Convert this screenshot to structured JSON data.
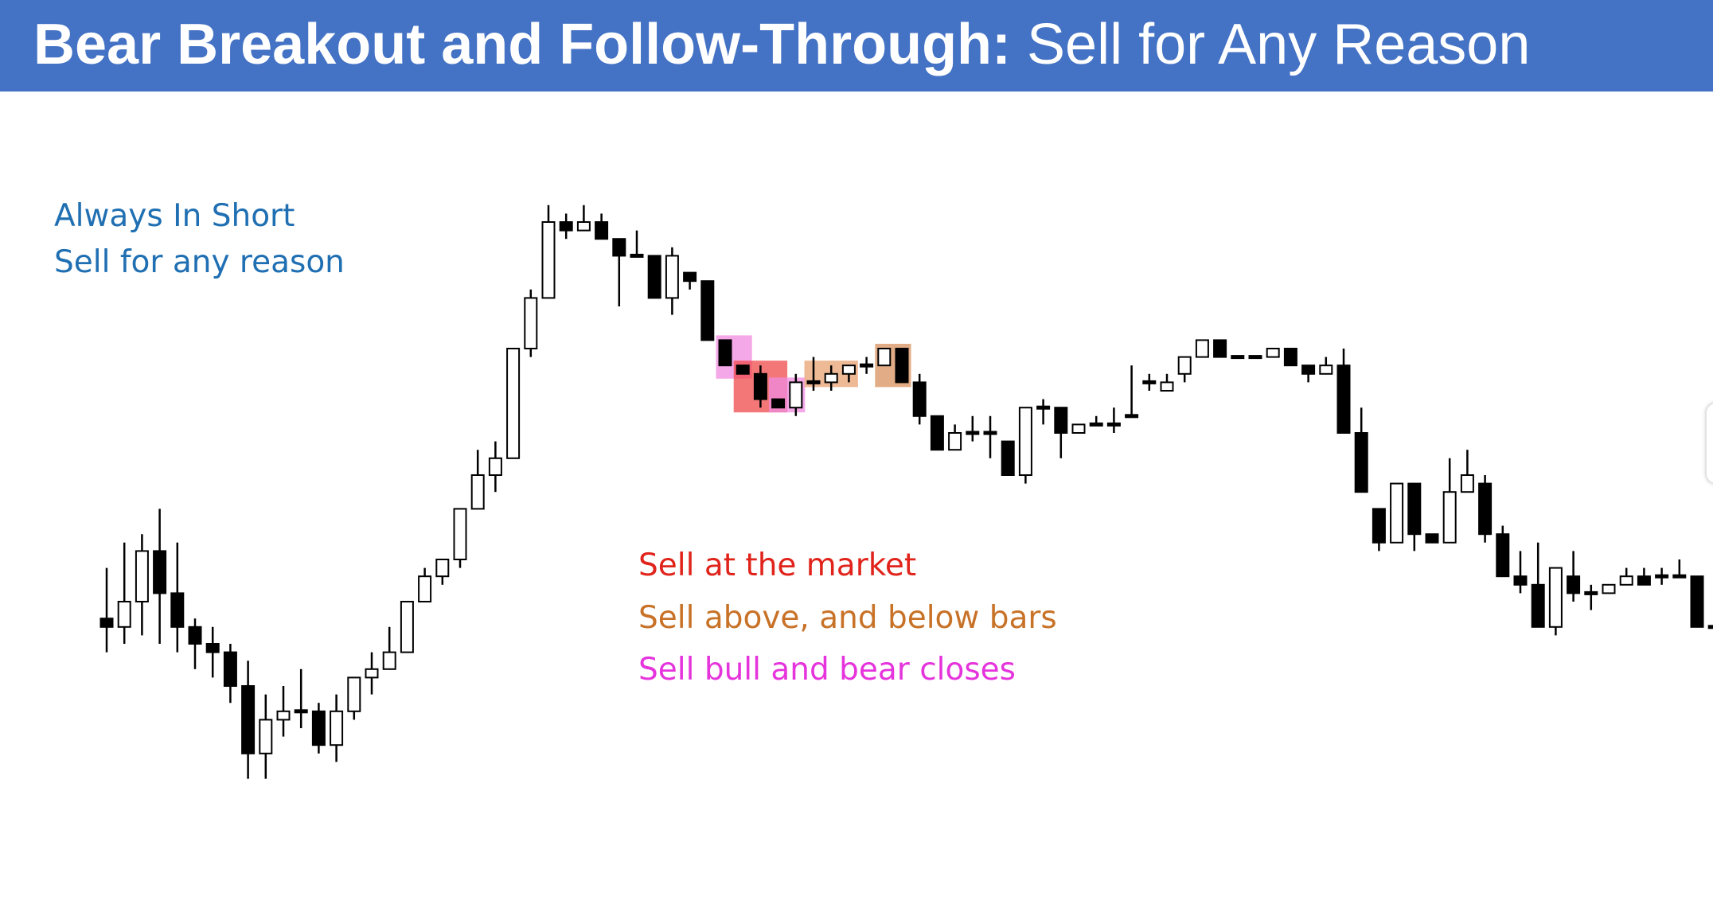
{
  "slide": {
    "title_bold": "Bear Breakout and Follow-Through:",
    "title_rest": "Sell for Any Reason",
    "title_bg": "#4472c4"
  },
  "notes": {
    "always_in": {
      "text": "Always In Short",
      "color": "#1f6fb2"
    },
    "sell_any": {
      "text": "Sell for any reason",
      "color": "#1f6fb2"
    }
  },
  "legend": [
    {
      "text": "Sell at the market",
      "color": "#e0241b"
    },
    {
      "text": "Sell above, and below bars",
      "color": "#c87228"
    },
    {
      "text": "Sell bull and bear closes",
      "color": "#e534dc"
    }
  ],
  "chart_data": {
    "type": "candlestick",
    "title": "",
    "xlabel": "",
    "ylabel": "",
    "ylim": [
      0,
      100
    ],
    "grid": false,
    "colors": {
      "bull": "#ffffff",
      "bear": "#000000",
      "outline": "#000000"
    },
    "bars": [
      [
        38,
        37,
        44,
        34
      ],
      [
        37,
        40,
        47,
        35
      ],
      [
        40,
        46,
        48,
        36
      ],
      [
        46,
        41,
        51,
        35
      ],
      [
        41,
        37,
        47,
        34
      ],
      [
        37,
        35,
        38,
        32
      ],
      [
        35,
        34,
        37,
        31
      ],
      [
        34,
        30,
        35,
        28
      ],
      [
        30,
        22,
        33,
        19
      ],
      [
        22,
        26,
        29,
        19
      ],
      [
        26,
        27,
        30,
        24
      ],
      [
        27,
        27,
        32,
        25
      ],
      [
        27,
        23,
        28,
        22
      ],
      [
        23,
        27,
        29,
        21
      ],
      [
        27,
        31,
        31,
        26
      ],
      [
        31,
        32,
        34,
        29
      ],
      [
        32,
        34,
        37,
        32
      ],
      [
        34,
        40,
        40,
        34
      ],
      [
        40,
        43,
        44,
        40
      ],
      [
        43,
        45,
        45,
        42
      ],
      [
        45,
        51,
        51,
        44
      ],
      [
        51,
        55,
        58,
        51
      ],
      [
        55,
        57,
        59,
        53
      ],
      [
        57,
        70,
        70,
        57
      ],
      [
        70,
        76,
        77,
        69
      ],
      [
        76,
        85,
        87,
        76
      ],
      [
        85,
        84,
        86,
        83
      ],
      [
        84,
        85,
        87,
        84
      ],
      [
        85,
        83,
        86,
        83
      ],
      [
        83,
        81,
        83,
        75
      ],
      [
        81,
        81,
        84,
        81
      ],
      [
        81,
        76,
        81,
        76
      ],
      [
        76,
        81,
        82,
        74
      ],
      [
        79,
        78,
        79,
        77
      ],
      [
        78,
        71,
        78,
        71
      ],
      [
        71,
        68,
        69,
        68
      ],
      [
        68,
        67,
        68,
        67
      ],
      [
        67,
        64,
        68,
        63
      ],
      [
        64,
        63,
        63,
        63
      ],
      [
        63,
        66,
        67,
        62
      ],
      [
        66,
        66,
        69,
        65
      ],
      [
        66,
        67,
        68,
        65
      ],
      [
        67,
        68,
        68,
        66
      ],
      [
        68,
        68,
        69,
        67
      ],
      [
        68,
        70,
        70,
        69
      ],
      [
        70,
        66,
        70,
        66
      ],
      [
        66,
        62,
        67,
        61
      ],
      [
        62,
        58,
        62,
        58
      ],
      [
        58,
        60,
        61,
        58
      ],
      [
        60,
        60,
        62,
        59
      ],
      [
        60,
        60,
        62,
        57
      ],
      [
        59,
        55,
        59,
        55
      ],
      [
        55,
        63,
        63,
        54
      ],
      [
        63,
        63,
        64,
        61
      ],
      [
        63,
        60,
        63,
        57
      ],
      [
        60,
        61,
        61,
        60
      ],
      [
        61,
        61,
        62,
        61
      ],
      [
        61,
        61,
        63,
        60
      ],
      [
        62,
        62,
        68,
        62
      ],
      [
        66,
        66,
        67,
        65
      ],
      [
        65,
        66,
        67,
        66
      ],
      [
        67,
        69,
        69,
        66
      ],
      [
        69,
        71,
        71,
        70
      ],
      [
        71,
        69,
        71,
        69
      ],
      [
        69,
        69,
        69,
        69
      ],
      [
        69,
        69,
        69,
        69
      ],
      [
        69,
        70,
        70,
        69
      ],
      [
        70,
        68,
        70,
        68
      ],
      [
        68,
        67,
        68,
        66
      ],
      [
        67,
        68,
        69,
        67
      ],
      [
        68,
        60,
        70,
        60
      ],
      [
        60,
        53,
        63,
        53
      ],
      [
        51,
        47,
        50,
        46
      ],
      [
        47,
        54,
        54,
        48
      ],
      [
        54,
        48,
        54,
        46
      ],
      [
        48,
        47,
        48,
        47
      ],
      [
        47,
        53,
        57,
        48
      ],
      [
        53,
        55,
        58,
        53
      ],
      [
        54,
        48,
        55,
        47
      ],
      [
        48,
        43,
        49,
        43
      ],
      [
        43,
        42,
        46,
        41
      ],
      [
        42,
        37,
        47,
        37
      ],
      [
        37,
        44,
        44,
        36
      ],
      [
        43,
        41,
        46,
        40
      ],
      [
        41,
        41,
        42,
        39
      ],
      [
        41,
        42,
        42,
        41
      ],
      [
        42,
        43,
        44,
        42
      ],
      [
        43,
        42,
        44,
        42
      ],
      [
        43,
        43,
        44,
        42
      ],
      [
        43,
        43,
        45,
        43
      ],
      [
        43,
        37,
        43,
        37
      ],
      [
        37,
        37,
        38,
        37
      ]
    ],
    "highlights": [
      {
        "kind": "bull-bear-close",
        "from": 35,
        "to": 36,
        "color": "#f08be0"
      },
      {
        "kind": "market",
        "from": 36,
        "to": 38,
        "color": "#f04a4a"
      },
      {
        "kind": "bull-bear-close",
        "from": 38,
        "to": 39,
        "color": "#f08be0"
      },
      {
        "kind": "above-below-bars",
        "from": 40,
        "to": 42,
        "color": "#e8a271"
      },
      {
        "kind": "above-below-bars",
        "from": 44,
        "to": 45,
        "color": "#d8925e"
      }
    ]
  }
}
